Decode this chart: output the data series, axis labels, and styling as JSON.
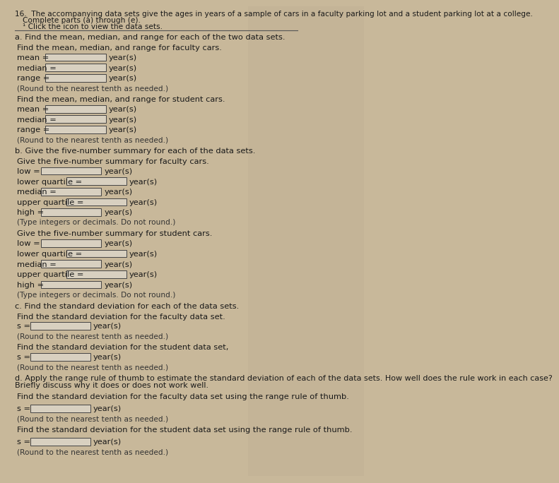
{
  "bg_color": "#c8b89a",
  "bg_color_right": "#b8a88a",
  "text_color": "#1a1a1a",
  "box_fill": "#ddd8cc",
  "box_border": "#555555",
  "header_line1": "16.  The accompanying data sets give the ages in years of a sample of cars in a faculty parking lot and a student parking lot at a college.",
  "header_line2": "Complete parts (a) through (e).",
  "header_line3": "¹ Click the icon to view the data sets.",
  "sec_a_title": "a. Find the mean, median, and range for each of the two data sets.",
  "sec_a_fac_intro": "Find the mean, median, and range for faculty cars.",
  "faculty_labels_a": [
    "mean =",
    "median =",
    "range ="
  ],
  "sec_a_stu_intro": "Find the mean, median, and range for student cars.",
  "student_labels_a": [
    "mean =",
    "median =",
    "range ="
  ],
  "round_note": "(Round to the nearest tenth as needed.)",
  "sec_b_title": "b. Give the five-number summary for each of the data sets.",
  "sec_b_fac_intro": "Give the five-number summary for faculty cars.",
  "faculty_labels_b": [
    "low =",
    "lower quartile =",
    "median =",
    "upper quartile =",
    "high ="
  ],
  "sec_b_stu_intro": "Give the five-number summary for student cars.",
  "student_labels_b": [
    "low =",
    "lower quartile =",
    "median =",
    "upper quartile =",
    "high ="
  ],
  "round_note_b": "(Type integers or decimals. Do not round.)",
  "sec_c_title": "c. Find the standard deviation for each of the data sets.",
  "sec_c_fac_intro": "Find the standard deviation for the faculty data set.",
  "sec_c_stu_intro": "Find the standard deviation for the student data set,",
  "sec_d_line1": "d. Apply the range rule of thumb to estimate the standard deviation of each of the data sets. How well does the rule work in each case?",
  "sec_d_line2": "Briefly discuss why it does or does not work well.",
  "sec_d_fac_intro": "Find the standard deviation for the faculty data set using the range rule of thumb.",
  "sec_d_stu_intro": "Find the standard deviation for the student data set using the range rule of thumb.",
  "unit": "year(s)",
  "round_note_c": "(Round to the nearest tenth as needed.)"
}
